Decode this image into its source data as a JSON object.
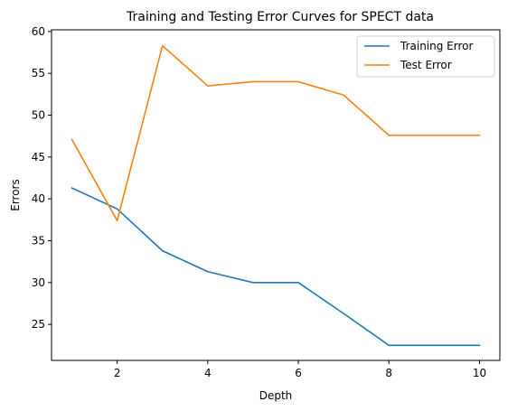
{
  "chart_data": {
    "type": "line",
    "title": "Training and Testing Error Curves for SPECT data",
    "xlabel": "Depth",
    "ylabel": "Errors",
    "xlim": [
      0.55,
      10.45
    ],
    "ylim": [
      20.7,
      60.2
    ],
    "xticks": [
      2,
      4,
      6,
      8,
      10
    ],
    "yticks": [
      25,
      30,
      35,
      40,
      45,
      50,
      55,
      60
    ],
    "x": [
      1,
      2,
      3,
      4,
      5,
      6,
      7,
      8,
      9,
      10
    ],
    "series": [
      {
        "name": "Training Error",
        "color": "#1f77b4",
        "values": [
          41.3,
          38.8,
          33.8,
          31.3,
          30.0,
          30.0,
          26.3,
          22.5,
          22.5,
          22.5
        ]
      },
      {
        "name": "Test Error",
        "color": "#ff7f0e",
        "values": [
          47.1,
          37.4,
          58.3,
          53.5,
          54.0,
          54.0,
          52.4,
          47.6,
          47.6,
          47.6
        ]
      }
    ],
    "grid": false,
    "legend_position": "top-right"
  }
}
